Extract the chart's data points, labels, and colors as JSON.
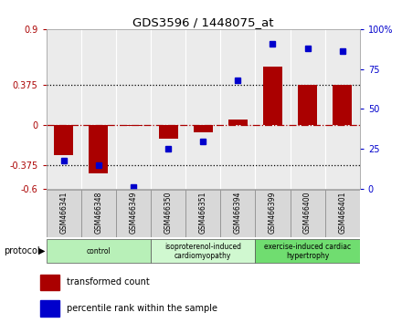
{
  "title": "GDS3596 / 1448075_at",
  "samples": [
    "GSM466341",
    "GSM466348",
    "GSM466349",
    "GSM466350",
    "GSM466351",
    "GSM466394",
    "GSM466399",
    "GSM466400",
    "GSM466401"
  ],
  "red_values": [
    -0.28,
    -0.45,
    -0.01,
    -0.13,
    -0.07,
    0.05,
    0.55,
    0.38,
    0.38
  ],
  "blue_percentiles": [
    18,
    15,
    1,
    25,
    30,
    68,
    91,
    88,
    86
  ],
  "groups": [
    {
      "label": "control",
      "start": 0,
      "end": 3,
      "color": "#b8f0b8"
    },
    {
      "label": "isoproterenol-induced\ncardiomyopathy",
      "start": 3,
      "end": 6,
      "color": "#d0f8d0"
    },
    {
      "label": "exercise-induced cardiac\nhypertrophy",
      "start": 6,
      "end": 9,
      "color": "#70dd70"
    }
  ],
  "ylim_left": [
    -0.6,
    0.9
  ],
  "ylim_right": [
    0,
    100
  ],
  "yticks_left": [
    -0.6,
    -0.375,
    0,
    0.375,
    0.9
  ],
  "ytick_labels_left": [
    "-0.6",
    "-0.375",
    "0",
    "0.375",
    "0.9"
  ],
  "yticks_right": [
    0,
    25,
    50,
    75,
    100
  ],
  "ytick_labels_right": [
    "0",
    "25",
    "50",
    "75",
    "100%"
  ],
  "hlines": [
    0.375,
    -0.375
  ],
  "bar_color": "#aa0000",
  "dot_color": "#0000cc",
  "protocol_label": "protocol",
  "legend_red": "transformed count",
  "legend_blue": "percentile rank within the sample"
}
